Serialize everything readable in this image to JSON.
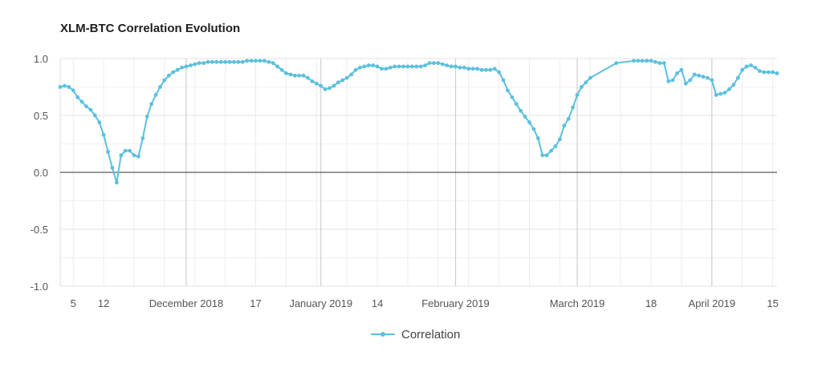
{
  "chart_data": {
    "type": "line",
    "title": "XLM-BTC Correlation Evolution",
    "xlabel": "",
    "ylabel": "",
    "ylim": [
      -1.0,
      1.0
    ],
    "xlim": [
      "2018-11-02",
      "2019-04-16"
    ],
    "grid": true,
    "legend_placement": "bottom",
    "yticks": [
      "1.0",
      "0.5",
      "0.0",
      "-0.5",
      "-1.0"
    ],
    "xticks": [
      {
        "date": "2018-11-05",
        "label": "5"
      },
      {
        "date": "2018-11-12",
        "label": "12"
      },
      {
        "date": "2018-12-01",
        "label": "December 2018"
      },
      {
        "date": "2018-12-17",
        "label": "17"
      },
      {
        "date": "2019-01-01",
        "label": "January 2019"
      },
      {
        "date": "2019-01-14",
        "label": "14"
      },
      {
        "date": "2019-02-01",
        "label": "February 2019"
      },
      {
        "date": "2019-03-01",
        "label": "March 2019"
      },
      {
        "date": "2019-03-18",
        "label": "18"
      },
      {
        "date": "2019-04-01",
        "label": "April 2019"
      },
      {
        "date": "2019-04-15",
        "label": "15"
      }
    ],
    "series": [
      {
        "name": "Correlation",
        "color": "#5bc0de",
        "points": [
          [
            "2018-11-02",
            0.75
          ],
          [
            "2018-11-03",
            0.76
          ],
          [
            "2018-11-04",
            0.75
          ],
          [
            "2018-11-05",
            0.72
          ],
          [
            "2018-11-06",
            0.66
          ],
          [
            "2018-11-07",
            0.62
          ],
          [
            "2018-11-08",
            0.58
          ],
          [
            "2018-11-09",
            0.55
          ],
          [
            "2018-11-10",
            0.5
          ],
          [
            "2018-11-11",
            0.44
          ],
          [
            "2018-11-12",
            0.33
          ],
          [
            "2018-11-13",
            0.18
          ],
          [
            "2018-11-14",
            0.04
          ],
          [
            "2018-11-15",
            -0.09
          ],
          [
            "2018-11-16",
            0.15
          ],
          [
            "2018-11-17",
            0.19
          ],
          [
            "2018-11-18",
            0.19
          ],
          [
            "2018-11-19",
            0.15
          ],
          [
            "2018-11-20",
            0.14
          ],
          [
            "2018-11-21",
            0.3
          ],
          [
            "2018-11-22",
            0.49
          ],
          [
            "2018-11-23",
            0.6
          ],
          [
            "2018-11-24",
            0.68
          ],
          [
            "2018-11-25",
            0.75
          ],
          [
            "2018-11-26",
            0.81
          ],
          [
            "2018-11-27",
            0.85
          ],
          [
            "2018-11-28",
            0.88
          ],
          [
            "2018-11-29",
            0.9
          ],
          [
            "2018-11-30",
            0.92
          ],
          [
            "2018-12-01",
            0.93
          ],
          [
            "2018-12-02",
            0.94
          ],
          [
            "2018-12-03",
            0.95
          ],
          [
            "2018-12-04",
            0.96
          ],
          [
            "2018-12-05",
            0.96
          ],
          [
            "2018-12-06",
            0.97
          ],
          [
            "2018-12-07",
            0.97
          ],
          [
            "2018-12-08",
            0.97
          ],
          [
            "2018-12-09",
            0.97
          ],
          [
            "2018-12-10",
            0.97
          ],
          [
            "2018-12-11",
            0.97
          ],
          [
            "2018-12-12",
            0.97
          ],
          [
            "2018-12-13",
            0.97
          ],
          [
            "2018-12-14",
            0.97
          ],
          [
            "2018-12-15",
            0.98
          ],
          [
            "2018-12-16",
            0.98
          ],
          [
            "2018-12-17",
            0.98
          ],
          [
            "2018-12-18",
            0.98
          ],
          [
            "2018-12-19",
            0.98
          ],
          [
            "2018-12-20",
            0.97
          ],
          [
            "2018-12-21",
            0.96
          ],
          [
            "2018-12-22",
            0.93
          ],
          [
            "2018-12-23",
            0.9
          ],
          [
            "2018-12-24",
            0.87
          ],
          [
            "2018-12-25",
            0.86
          ],
          [
            "2018-12-26",
            0.85
          ],
          [
            "2018-12-27",
            0.85
          ],
          [
            "2018-12-28",
            0.85
          ],
          [
            "2018-12-29",
            0.83
          ],
          [
            "2018-12-30",
            0.8
          ],
          [
            "2018-12-31",
            0.78
          ],
          [
            "2019-01-01",
            0.76
          ],
          [
            "2019-01-02",
            0.73
          ],
          [
            "2019-01-03",
            0.74
          ],
          [
            "2019-01-04",
            0.76
          ],
          [
            "2019-01-05",
            0.79
          ],
          [
            "2019-01-06",
            0.81
          ],
          [
            "2019-01-07",
            0.83
          ],
          [
            "2019-01-08",
            0.86
          ],
          [
            "2019-01-09",
            0.9
          ],
          [
            "2019-01-10",
            0.92
          ],
          [
            "2019-01-11",
            0.93
          ],
          [
            "2019-01-12",
            0.94
          ],
          [
            "2019-01-13",
            0.94
          ],
          [
            "2019-01-14",
            0.93
          ],
          [
            "2019-01-15",
            0.91
          ],
          [
            "2019-01-16",
            0.91
          ],
          [
            "2019-01-17",
            0.92
          ],
          [
            "2019-01-18",
            0.93
          ],
          [
            "2019-01-19",
            0.93
          ],
          [
            "2019-01-20",
            0.93
          ],
          [
            "2019-01-21",
            0.93
          ],
          [
            "2019-01-22",
            0.93
          ],
          [
            "2019-01-23",
            0.93
          ],
          [
            "2019-01-24",
            0.93
          ],
          [
            "2019-01-25",
            0.94
          ],
          [
            "2019-01-26",
            0.96
          ],
          [
            "2019-01-27",
            0.96
          ],
          [
            "2019-01-28",
            0.96
          ],
          [
            "2019-01-29",
            0.95
          ],
          [
            "2019-01-30",
            0.94
          ],
          [
            "2019-01-31",
            0.93
          ],
          [
            "2019-02-01",
            0.93
          ],
          [
            "2019-02-02",
            0.92
          ],
          [
            "2019-02-03",
            0.92
          ],
          [
            "2019-02-04",
            0.91
          ],
          [
            "2019-02-05",
            0.91
          ],
          [
            "2019-02-06",
            0.91
          ],
          [
            "2019-02-07",
            0.9
          ],
          [
            "2019-02-08",
            0.9
          ],
          [
            "2019-02-09",
            0.9
          ],
          [
            "2019-02-10",
            0.91
          ],
          [
            "2019-02-11",
            0.88
          ],
          [
            "2019-02-12",
            0.81
          ],
          [
            "2019-02-13",
            0.72
          ],
          [
            "2019-02-14",
            0.66
          ],
          [
            "2019-02-15",
            0.6
          ],
          [
            "2019-02-16",
            0.54
          ],
          [
            "2019-02-17",
            0.49
          ],
          [
            "2019-02-18",
            0.44
          ],
          [
            "2019-02-19",
            0.38
          ],
          [
            "2019-02-20",
            0.3
          ],
          [
            "2019-02-21",
            0.15
          ],
          [
            "2019-02-22",
            0.15
          ],
          [
            "2019-02-23",
            0.19
          ],
          [
            "2019-02-24",
            0.23
          ],
          [
            "2019-02-25",
            0.29
          ],
          [
            "2019-02-26",
            0.41
          ],
          [
            "2019-02-27",
            0.47
          ],
          [
            "2019-02-28",
            0.57
          ],
          [
            "2019-03-01",
            0.68
          ],
          [
            "2019-03-02",
            0.75
          ],
          [
            "2019-03-03",
            0.79
          ],
          [
            "2019-03-04",
            0.83
          ],
          [
            "2019-03-10",
            0.96
          ],
          [
            "2019-03-14",
            0.98
          ],
          [
            "2019-03-15",
            0.98
          ],
          [
            "2019-03-16",
            0.98
          ],
          [
            "2019-03-17",
            0.98
          ],
          [
            "2019-03-18",
            0.98
          ],
          [
            "2019-03-19",
            0.97
          ],
          [
            "2019-03-20",
            0.96
          ],
          [
            "2019-03-21",
            0.96
          ],
          [
            "2019-03-22",
            0.8
          ],
          [
            "2019-03-23",
            0.81
          ],
          [
            "2019-03-24",
            0.87
          ],
          [
            "2019-03-25",
            0.9
          ],
          [
            "2019-03-26",
            0.78
          ],
          [
            "2019-03-27",
            0.81
          ],
          [
            "2019-03-28",
            0.86
          ],
          [
            "2019-03-29",
            0.85
          ],
          [
            "2019-03-30",
            0.84
          ],
          [
            "2019-03-31",
            0.83
          ],
          [
            "2019-04-01",
            0.81
          ],
          [
            "2019-04-02",
            0.68
          ],
          [
            "2019-04-03",
            0.69
          ],
          [
            "2019-04-04",
            0.7
          ],
          [
            "2019-04-05",
            0.73
          ],
          [
            "2019-04-06",
            0.77
          ],
          [
            "2019-04-07",
            0.83
          ],
          [
            "2019-04-08",
            0.9
          ],
          [
            "2019-04-09",
            0.93
          ],
          [
            "2019-04-10",
            0.94
          ],
          [
            "2019-04-11",
            0.92
          ],
          [
            "2019-04-12",
            0.89
          ],
          [
            "2019-04-13",
            0.88
          ],
          [
            "2019-04-14",
            0.88
          ],
          [
            "2019-04-15",
            0.88
          ],
          [
            "2019-04-16",
            0.87
          ]
        ]
      }
    ]
  }
}
